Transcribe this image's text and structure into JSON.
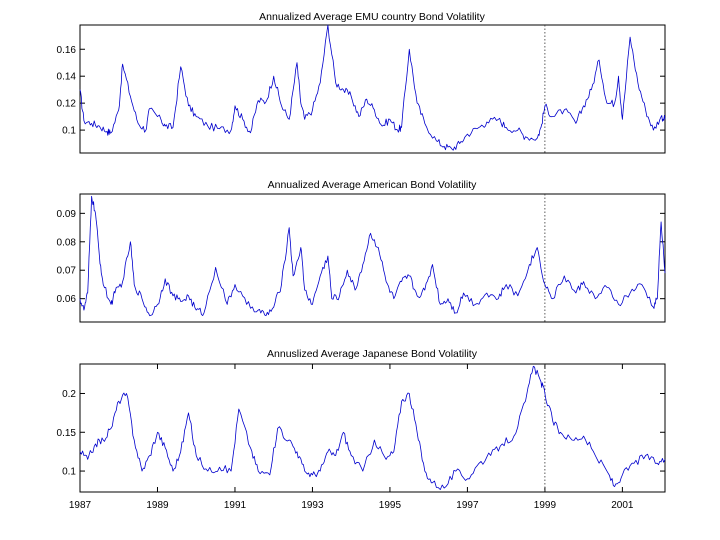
{
  "chart_data": [
    {
      "type": "line",
      "title": "Annualized Average EMU country Bond Volatility",
      "xlabel": "",
      "ylabel": "",
      "xlim": [
        1987.0,
        2002.1
      ],
      "ylim": [
        0.083,
        0.178
      ],
      "yticks": [
        0.1,
        0.12,
        0.14,
        0.16
      ],
      "ytick_labels": [
        "0.1",
        "0.12",
        "0.14",
        "0.16"
      ],
      "vline": {
        "x": 1999.0,
        "style": "dotted"
      },
      "series": [
        {
          "name": "EMU",
          "color": "#0000cc",
          "x": [
            1987.0,
            1987.1,
            1987.3,
            1987.5,
            1987.7,
            1987.8,
            1988.0,
            1988.1,
            1988.3,
            1988.5,
            1988.7,
            1988.8,
            1989.1,
            1989.2,
            1989.4,
            1989.6,
            1989.8,
            1990.0,
            1990.3,
            1990.6,
            1990.9,
            1991.0,
            1991.2,
            1991.4,
            1991.6,
            1991.8,
            1992.0,
            1992.2,
            1992.4,
            1992.6,
            1992.7,
            1992.8,
            1993.0,
            1993.2,
            1993.4,
            1993.6,
            1993.8,
            1994.0,
            1994.2,
            1994.4,
            1994.6,
            1994.8,
            1995.0,
            1995.2,
            1995.3,
            1995.5,
            1995.7,
            1995.9,
            1996.2,
            1996.4,
            1996.6,
            1996.8,
            1997.0,
            1997.3,
            1997.5,
            1997.8,
            1998.0,
            1998.3,
            1998.5,
            1998.8,
            1998.9,
            1999.0,
            1999.2,
            1999.5,
            1999.8,
            2000.0,
            2000.2,
            2000.4,
            2000.6,
            2000.8,
            2000.9,
            2001.0,
            2001.2,
            2001.4,
            2001.6,
            2001.8,
            2002.0,
            2002.1
          ],
          "y": [
            0.13,
            0.107,
            0.105,
            0.103,
            0.099,
            0.098,
            0.115,
            0.149,
            0.125,
            0.105,
            0.1,
            0.116,
            0.107,
            0.103,
            0.102,
            0.147,
            0.118,
            0.11,
            0.103,
            0.101,
            0.1,
            0.118,
            0.108,
            0.098,
            0.122,
            0.121,
            0.14,
            0.118,
            0.108,
            0.15,
            0.12,
            0.108,
            0.115,
            0.135,
            0.178,
            0.135,
            0.13,
            0.125,
            0.11,
            0.123,
            0.115,
            0.103,
            0.108,
            0.1,
            0.102,
            0.16,
            0.12,
            0.105,
            0.092,
            0.088,
            0.086,
            0.09,
            0.097,
            0.102,
            0.106,
            0.108,
            0.102,
            0.1,
            0.095,
            0.094,
            0.102,
            0.118,
            0.11,
            0.115,
            0.105,
            0.118,
            0.13,
            0.152,
            0.12,
            0.12,
            0.14,
            0.108,
            0.169,
            0.135,
            0.115,
            0.1,
            0.11,
            0.108
          ]
        }
      ]
    },
    {
      "type": "line",
      "title": "Annualized Average American Bond Volatility",
      "xlabel": "",
      "ylabel": "",
      "xlim": [
        1987.0,
        2002.1
      ],
      "ylim": [
        0.0518,
        0.0968
      ],
      "yticks": [
        0.06,
        0.07,
        0.08,
        0.09
      ],
      "ytick_labels": [
        "0.06",
        "0.07",
        "0.08",
        "0.09"
      ],
      "vline": {
        "x": 1999.0,
        "style": "dotted"
      },
      "series": [
        {
          "name": "US",
          "color": "#0000cc",
          "x": [
            1987.0,
            1987.1,
            1987.2,
            1987.3,
            1987.4,
            1987.5,
            1987.6,
            1987.8,
            1987.9,
            1988.1,
            1988.3,
            1988.4,
            1988.6,
            1988.8,
            1989.0,
            1989.2,
            1989.4,
            1989.6,
            1989.8,
            1990.0,
            1990.2,
            1990.5,
            1990.8,
            1991.0,
            1991.3,
            1991.6,
            1991.8,
            1992.0,
            1992.2,
            1992.4,
            1992.5,
            1992.7,
            1992.8,
            1993.0,
            1993.2,
            1993.4,
            1993.5,
            1993.7,
            1993.9,
            1994.1,
            1994.3,
            1994.5,
            1994.7,
            1994.9,
            1995.1,
            1995.3,
            1995.5,
            1995.7,
            1995.9,
            1996.1,
            1996.3,
            1996.5,
            1996.7,
            1996.9,
            1997.2,
            1997.5,
            1997.8,
            1998.0,
            1998.3,
            1998.6,
            1998.8,
            1999.0,
            1999.2,
            1999.5,
            1999.8,
            2000.0,
            2000.3,
            2000.6,
            2000.9,
            2001.2,
            2001.5,
            2001.8,
            2001.9,
            2002.0,
            2002.1
          ],
          "y": [
            0.06,
            0.056,
            0.062,
            0.096,
            0.09,
            0.075,
            0.065,
            0.058,
            0.062,
            0.066,
            0.08,
            0.065,
            0.06,
            0.054,
            0.058,
            0.067,
            0.061,
            0.059,
            0.061,
            0.056,
            0.055,
            0.071,
            0.058,
            0.065,
            0.058,
            0.056,
            0.054,
            0.057,
            0.065,
            0.085,
            0.068,
            0.078,
            0.063,
            0.058,
            0.068,
            0.075,
            0.06,
            0.061,
            0.07,
            0.063,
            0.072,
            0.083,
            0.078,
            0.066,
            0.06,
            0.066,
            0.068,
            0.061,
            0.063,
            0.072,
            0.058,
            0.06,
            0.055,
            0.062,
            0.058,
            0.062,
            0.06,
            0.065,
            0.061,
            0.072,
            0.078,
            0.065,
            0.06,
            0.068,
            0.062,
            0.066,
            0.06,
            0.064,
            0.058,
            0.062,
            0.065,
            0.057,
            0.06,
            0.087,
            0.069
          ]
        }
      ]
    },
    {
      "type": "line",
      "title": "Annuslized Average Japanese Bond Volatility",
      "xlabel": "",
      "ylabel": "",
      "xlim": [
        1987.0,
        2002.1
      ],
      "ylim": [
        0.073,
        0.238
      ],
      "yticks": [
        0.1,
        0.15,
        0.2
      ],
      "ytick_labels": [
        "0.1",
        "0.15",
        "0.2"
      ],
      "xticks": [
        1987,
        1989,
        1991,
        1993,
        1995,
        1997,
        1999,
        2001
      ],
      "xtick_labels": [
        "1987",
        "1989",
        "1991",
        "1993",
        "1995",
        "1997",
        "1999",
        "2001"
      ],
      "vline": {
        "x": 1999.0,
        "style": "dotted"
      },
      "series": [
        {
          "name": "Japan",
          "color": "#0000cc",
          "x": [
            1987.0,
            1987.2,
            1987.4,
            1987.6,
            1987.8,
            1988.0,
            1988.2,
            1988.4,
            1988.6,
            1988.8,
            1989.0,
            1989.2,
            1989.4,
            1989.6,
            1989.8,
            1990.0,
            1990.3,
            1990.6,
            1990.9,
            1991.1,
            1991.4,
            1991.6,
            1991.9,
            1992.1,
            1992.4,
            1992.6,
            1992.8,
            1993.0,
            1993.2,
            1993.4,
            1993.6,
            1993.8,
            1994.0,
            1994.3,
            1994.6,
            1994.9,
            1995.1,
            1995.3,
            1995.5,
            1995.7,
            1995.9,
            1996.1,
            1996.4,
            1996.7,
            1997.0,
            1997.3,
            1997.6,
            1997.9,
            1998.2,
            1998.5,
            1998.7,
            1998.9,
            1999.0,
            1999.2,
            1999.4,
            1999.7,
            2000.0,
            2000.3,
            2000.6,
            2000.8,
            2001.0,
            2001.3,
            2001.6,
            2001.9,
            2002.1
          ],
          "y": [
            0.125,
            0.115,
            0.135,
            0.14,
            0.155,
            0.19,
            0.2,
            0.14,
            0.1,
            0.12,
            0.15,
            0.13,
            0.1,
            0.125,
            0.175,
            0.12,
            0.1,
            0.105,
            0.1,
            0.18,
            0.13,
            0.1,
            0.095,
            0.155,
            0.14,
            0.125,
            0.1,
            0.095,
            0.1,
            0.125,
            0.12,
            0.15,
            0.12,
            0.1,
            0.14,
            0.115,
            0.125,
            0.19,
            0.2,
            0.15,
            0.1,
            0.085,
            0.078,
            0.1,
            0.09,
            0.11,
            0.12,
            0.135,
            0.145,
            0.19,
            0.235,
            0.215,
            0.2,
            0.165,
            0.15,
            0.14,
            0.145,
            0.12,
            0.1,
            0.08,
            0.095,
            0.11,
            0.12,
            0.11,
            0.115
          ]
        }
      ]
    }
  ]
}
